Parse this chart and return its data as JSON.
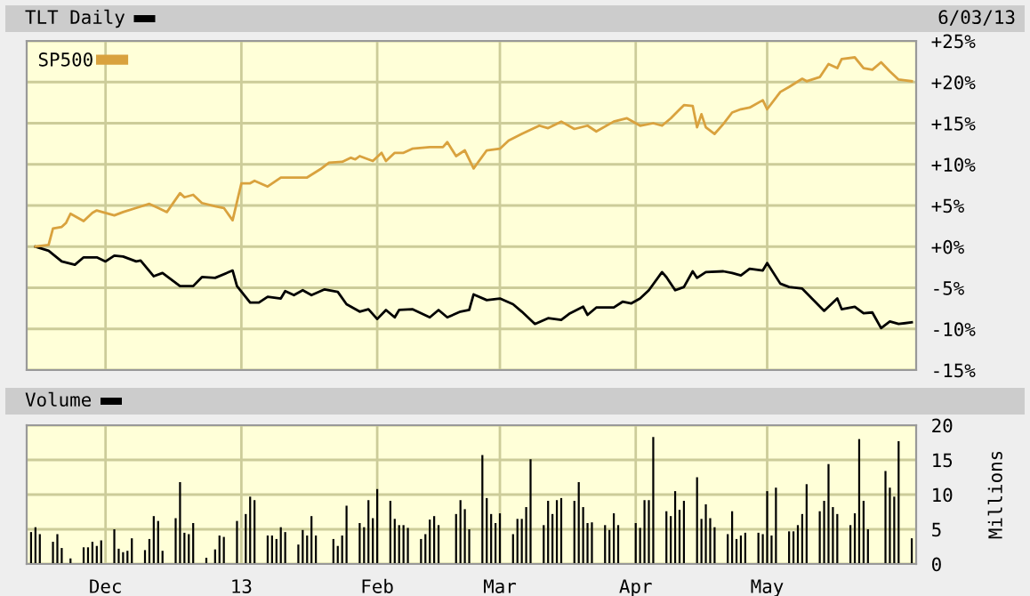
{
  "chart_data": [
    {
      "type": "line",
      "annotations": [
        "6/03/13"
      ],
      "legend": "top left",
      "grid": true,
      "tick_labels": "y",
      "xlim": [
        "2012-11-13",
        "2013-06-04"
      ],
      "xticks": [
        {
          "value": "2012-12-01",
          "label": null
        },
        {
          "value": "2013-01-01",
          "label": null
        },
        {
          "value": "2013-02-01",
          "label": null
        },
        {
          "value": "2013-03-01",
          "label": null
        },
        {
          "value": "2013-04-01",
          "label": null
        },
        {
          "value": "2013-05-01",
          "label": null
        }
      ],
      "ylim": [
        -15,
        25
      ],
      "yticks": [
        {
          "value": -15,
          "label": "-15%"
        },
        {
          "value": -10,
          "label": "-10%"
        },
        {
          "value": -5,
          "label": "-5%"
        },
        {
          "value": 0,
          "label": "+0%"
        },
        {
          "value": 5,
          "label": "+5%"
        },
        {
          "value": 10,
          "label": "+10%"
        },
        {
          "value": 15,
          "label": "+15%"
        },
        {
          "value": 20,
          "label": "+20%"
        },
        {
          "value": 25,
          "label": "+25%"
        }
      ],
      "series": [
        {
          "name": "TLT Daily",
          "color": "#000000",
          "x": [
            "2012-11-15",
            "2012-11-18",
            "2012-11-21",
            "2012-11-24",
            "2012-11-26",
            "2012-11-29",
            "2012-12-01",
            "2012-12-03",
            "2012-12-05",
            "2012-12-08",
            "2012-12-09",
            "2012-12-12",
            "2012-12-14",
            "2012-12-18",
            "2012-12-21",
            "2012-12-23",
            "2012-12-26",
            "2012-12-30",
            "2012-12-31",
            "2013-01-03",
            "2013-01-05",
            "2013-01-07",
            "2013-01-10",
            "2013-01-11",
            "2013-01-13",
            "2013-01-15",
            "2013-01-17",
            "2013-01-20",
            "2013-01-23",
            "2013-01-25",
            "2013-01-28",
            "2013-01-30",
            "2013-02-01",
            "2013-02-03",
            "2013-02-05",
            "2013-02-06",
            "2013-02-09",
            "2013-02-13",
            "2013-02-15",
            "2013-02-17",
            "2013-02-20",
            "2013-02-22",
            "2013-02-23",
            "2013-02-26",
            "2013-03-01",
            "2013-03-04",
            "2013-03-06",
            "2013-03-09",
            "2013-03-12",
            "2013-03-15",
            "2013-03-17",
            "2013-03-20",
            "2013-03-21",
            "2013-03-23",
            "2013-03-27",
            "2013-03-29",
            "2013-03-31",
            "2013-04-02",
            "2013-04-04",
            "2013-04-07",
            "2013-04-08",
            "2013-04-10",
            "2013-04-12",
            "2013-04-14",
            "2013-04-15",
            "2013-04-17",
            "2013-04-21",
            "2013-04-23",
            "2013-04-25",
            "2013-04-27",
            "2013-04-30",
            "2013-05-01",
            "2013-05-04",
            "2013-05-06",
            "2013-05-09",
            "2013-05-14",
            "2013-05-17",
            "2013-05-18",
            "2013-05-21",
            "2013-05-23",
            "2013-05-25",
            "2013-05-27",
            "2013-05-29",
            "2013-05-31",
            "2013-06-03"
          ],
          "values": [
            0,
            -0.5,
            -1.8,
            -2.2,
            -1.3,
            -1.3,
            -1.8,
            -1.1,
            -1.2,
            -1.8,
            -1.7,
            -3.6,
            -3.2,
            -4.8,
            -4.8,
            -3.7,
            -3.8,
            -2.9,
            -4.8,
            -6.8,
            -6.8,
            -6.1,
            -6.3,
            -5.4,
            -5.9,
            -5.3,
            -5.9,
            -5.2,
            -5.5,
            -7.0,
            -7.9,
            -7.6,
            -8.8,
            -7.7,
            -8.6,
            -7.7,
            -7.6,
            -8.6,
            -7.7,
            -8.6,
            -7.9,
            -7.7,
            -5.8,
            -6.5,
            -6.3,
            -7.0,
            -7.9,
            -9.4,
            -8.7,
            -8.9,
            -8.1,
            -7.3,
            -8.3,
            -7.4,
            -7.4,
            -6.7,
            -6.9,
            -6.3,
            -5.3,
            -3.1,
            -3.7,
            -5.3,
            -4.9,
            -3.0,
            -3.8,
            -3.1,
            -3.0,
            -3.2,
            -3.5,
            -2.7,
            -2.9,
            -2.0,
            -4.5,
            -4.9,
            -5.1,
            -7.8,
            -6.3,
            -7.6,
            -7.3,
            -8.1,
            -8.0,
            -9.9,
            -9.1,
            -9.4,
            -9.2
          ]
        },
        {
          "name": "SP500",
          "color": "#d9a23e",
          "x": [
            "2012-11-15",
            "2012-11-18",
            "2012-11-19",
            "2012-11-21",
            "2012-11-22",
            "2012-11-23",
            "2012-11-26",
            "2012-11-28",
            "2012-11-29",
            "2012-12-03",
            "2012-12-05",
            "2012-12-08",
            "2012-12-11",
            "2012-12-13",
            "2012-12-15",
            "2012-12-18",
            "2012-12-19",
            "2012-12-21",
            "2012-12-23",
            "2012-12-26",
            "2012-12-28",
            "2012-12-30",
            "2013-01-01",
            "2013-01-03",
            "2013-01-04",
            "2013-01-07",
            "2013-01-10",
            "2013-01-16",
            "2013-01-19",
            "2013-01-21",
            "2013-01-24",
            "2013-01-26",
            "2013-01-27",
            "2013-01-28",
            "2013-01-31",
            "2013-02-02",
            "2013-02-03",
            "2013-02-05",
            "2013-02-07",
            "2013-02-09",
            "2013-02-13",
            "2013-02-16",
            "2013-02-17",
            "2013-02-19",
            "2013-02-21",
            "2013-02-23",
            "2013-02-26",
            "2013-03-01",
            "2013-03-03",
            "2013-03-06",
            "2013-03-10",
            "2013-03-12",
            "2013-03-15",
            "2013-03-18",
            "2013-03-21",
            "2013-03-23",
            "2013-03-27",
            "2013-03-30",
            "2013-04-02",
            "2013-04-05",
            "2013-04-07",
            "2013-04-09",
            "2013-04-12",
            "2013-04-14",
            "2013-04-15",
            "2013-04-16",
            "2013-04-17",
            "2013-04-19",
            "2013-04-21",
            "2013-04-23",
            "2013-04-25",
            "2013-04-27",
            "2013-04-30",
            "2013-05-01",
            "2013-05-04",
            "2013-05-06",
            "2013-05-09",
            "2013-05-10",
            "2013-05-13",
            "2013-05-15",
            "2013-05-17",
            "2013-05-18",
            "2013-05-21",
            "2013-05-23",
            "2013-05-25",
            "2013-05-27",
            "2013-05-29",
            "2013-05-31",
            "2013-06-03"
          ],
          "values": [
            0,
            0.2,
            2.2,
            2.4,
            2.9,
            4.0,
            3.1,
            4.1,
            4.4,
            3.8,
            4.2,
            4.7,
            5.2,
            4.7,
            4.2,
            6.5,
            6.0,
            6.3,
            5.3,
            4.9,
            4.7,
            3.2,
            7.7,
            7.7,
            8.0,
            7.3,
            8.4,
            8.4,
            9.4,
            10.2,
            10.3,
            10.8,
            10.6,
            11.0,
            10.4,
            11.4,
            10.4,
            11.4,
            11.4,
            11.9,
            12.1,
            12.1,
            12.7,
            11.0,
            11.7,
            9.5,
            11.7,
            11.9,
            12.9,
            13.7,
            14.7,
            14.4,
            15.2,
            14.3,
            14.7,
            14.0,
            15.2,
            15.6,
            14.7,
            15.0,
            14.7,
            15.6,
            17.2,
            17.1,
            14.5,
            16.1,
            14.5,
            13.7,
            14.9,
            16.3,
            16.7,
            16.9,
            17.8,
            16.7,
            18.8,
            19.4,
            20.4,
            20.1,
            20.6,
            22.2,
            21.7,
            22.8,
            23.0,
            21.7,
            21.5,
            22.4,
            21.3,
            20.3,
            20.1
          ]
        }
      ]
    },
    {
      "type": "bar",
      "ylabel": "Millions",
      "grid": true,
      "xlim": [
        "2012-11-13",
        "2013-06-04"
      ],
      "xticks": [
        {
          "value": "2012-12-01",
          "label": "Dec"
        },
        {
          "value": "2013-01-01",
          "label": "13"
        },
        {
          "value": "2013-02-01",
          "label": "Feb"
        },
        {
          "value": "2013-03-01",
          "label": "Mar"
        },
        {
          "value": "2013-04-01",
          "label": "Apr"
        },
        {
          "value": "2013-05-01",
          "label": "May"
        }
      ],
      "ylim": [
        0,
        20
      ],
      "yticks": [
        0,
        5,
        10,
        15,
        20
      ],
      "series": [
        {
          "name": "Volume",
          "color": "#000000",
          "x": [
            "2012-11-14",
            "2012-11-15",
            "2012-11-16",
            "2012-11-19",
            "2012-11-20",
            "2012-11-21",
            "2012-11-23",
            "2012-11-26",
            "2012-11-27",
            "2012-11-28",
            "2012-11-29",
            "2012-11-30",
            "2012-12-03",
            "2012-12-04",
            "2012-12-05",
            "2012-12-06",
            "2012-12-07",
            "2012-12-10",
            "2012-12-11",
            "2012-12-12",
            "2012-12-13",
            "2012-12-14",
            "2012-12-17",
            "2012-12-18",
            "2012-12-19",
            "2012-12-20",
            "2012-12-21",
            "2012-12-24",
            "2012-12-26",
            "2012-12-27",
            "2012-12-28",
            "2012-12-31",
            "2013-01-02",
            "2013-01-03",
            "2013-01-04",
            "2013-01-07",
            "2013-01-08",
            "2013-01-09",
            "2013-01-10",
            "2013-01-11",
            "2013-01-14",
            "2013-01-15",
            "2013-01-16",
            "2013-01-17",
            "2013-01-18",
            "2013-01-22",
            "2013-01-23",
            "2013-01-24",
            "2013-01-25",
            "2013-01-28",
            "2013-01-29",
            "2013-01-30",
            "2013-01-31",
            "2013-02-01",
            "2013-02-04",
            "2013-02-05",
            "2013-02-06",
            "2013-02-07",
            "2013-02-08",
            "2013-02-11",
            "2013-02-12",
            "2013-02-13",
            "2013-02-14",
            "2013-02-15",
            "2013-02-19",
            "2013-02-20",
            "2013-02-21",
            "2013-02-22",
            "2013-02-25",
            "2013-02-26",
            "2013-02-27",
            "2013-02-28",
            "2013-03-01",
            "2013-03-04",
            "2013-03-05",
            "2013-03-06",
            "2013-03-07",
            "2013-03-08",
            "2013-03-11",
            "2013-03-12",
            "2013-03-13",
            "2013-03-14",
            "2013-03-15",
            "2013-03-18",
            "2013-03-19",
            "2013-03-20",
            "2013-03-21",
            "2013-03-22",
            "2013-03-25",
            "2013-03-26",
            "2013-03-27",
            "2013-03-28",
            "2013-04-01",
            "2013-04-02",
            "2013-04-03",
            "2013-04-04",
            "2013-04-05",
            "2013-04-08",
            "2013-04-09",
            "2013-04-10",
            "2013-04-11",
            "2013-04-12",
            "2013-04-15",
            "2013-04-16",
            "2013-04-17",
            "2013-04-18",
            "2013-04-19",
            "2013-04-22",
            "2013-04-23",
            "2013-04-24",
            "2013-04-25",
            "2013-04-26",
            "2013-04-29",
            "2013-04-30",
            "2013-05-01",
            "2013-05-02",
            "2013-05-03",
            "2013-05-06",
            "2013-05-07",
            "2013-05-08",
            "2013-05-09",
            "2013-05-10",
            "2013-05-13",
            "2013-05-14",
            "2013-05-15",
            "2013-05-16",
            "2013-05-17",
            "2013-05-20",
            "2013-05-21",
            "2013-05-22",
            "2013-05-23",
            "2013-05-24",
            "2013-05-28",
            "2013-05-29",
            "2013-05-30",
            "2013-05-31",
            "2013-06-03"
          ],
          "values": [
            4.6,
            5.3,
            4.3,
            3.2,
            4.3,
            2.3,
            0.8,
            2.4,
            2.4,
            3.2,
            2.6,
            3.4,
            5.0,
            2.2,
            1.7,
            1.9,
            3.7,
            2.0,
            3.6,
            6.9,
            6.2,
            1.9,
            6.6,
            11.8,
            4.5,
            4.3,
            5.9,
            0.9,
            2.1,
            4.1,
            3.9,
            6.2,
            7.2,
            9.7,
            9.2,
            4.1,
            4.1,
            3.6,
            5.3,
            4.6,
            2.8,
            4.9,
            4.1,
            6.9,
            4.1,
            3.6,
            2.6,
            4.1,
            8.4,
            5.9,
            5.3,
            9.2,
            6.6,
            10.8,
            9.1,
            6.5,
            5.6,
            5.6,
            5.2,
            3.6,
            4.3,
            6.4,
            6.9,
            5.6,
            7.2,
            9.2,
            7.9,
            5.0,
            15.7,
            9.5,
            7.2,
            5.9,
            7.3,
            4.3,
            6.5,
            6.5,
            8.2,
            15.1,
            5.6,
            9.1,
            7.2,
            9.2,
            9.5,
            9.1,
            11.8,
            8.2,
            5.9,
            6.0,
            5.6,
            4.9,
            7.3,
            5.6,
            5.9,
            5.2,
            9.2,
            9.2,
            18.3,
            7.6,
            6.9,
            10.5,
            7.8,
            9.1,
            12.5,
            6.5,
            8.6,
            6.6,
            5.3,
            4.3,
            7.6,
            3.6,
            4.1,
            4.5,
            4.5,
            4.3,
            10.5,
            4.1,
            11.0,
            4.7,
            4.7,
            5.6,
            7.2,
            11.5,
            7.6,
            9.1,
            14.4,
            8.2,
            7.2,
            5.6,
            7.3,
            18.0,
            9.1,
            5.0,
            13.4,
            11.0,
            9.7,
            17.7,
            3.7
          ]
        }
      ]
    }
  ]
}
